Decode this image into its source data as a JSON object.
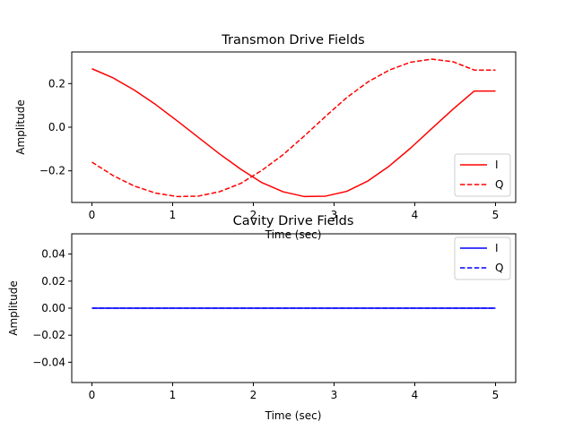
{
  "chart_data": [
    {
      "type": "line",
      "title": "Transmon Drive Fields",
      "xlabel": "Time (sec)",
      "ylabel": "Amplitude",
      "xlim": [
        -0.25,
        5.25
      ],
      "ylim": [
        -0.345,
        0.345
      ],
      "xticks": [
        0,
        1,
        2,
        3,
        4,
        5
      ],
      "xtick_labels": [
        "0",
        "1",
        "2",
        "3",
        "4",
        "5"
      ],
      "yticks": [
        0.2,
        0.0,
        -0.2
      ],
      "ytick_labels": [
        "0.2",
        "0.0",
        "−0.2"
      ],
      "legend_position": "lower-right",
      "series": [
        {
          "name": "I",
          "color": "#ff0000",
          "linestyle": "solid",
          "x": [
            0,
            0.263,
            0.526,
            0.789,
            1.053,
            1.316,
            1.579,
            1.842,
            2.105,
            2.368,
            2.632,
            2.895,
            3.158,
            3.421,
            3.684,
            3.947,
            4.211,
            4.474,
            4.737,
            5.0
          ],
          "y": [
            0.268,
            0.226,
            0.17,
            0.104,
            0.03,
            -0.046,
            -0.122,
            -0.192,
            -0.254,
            -0.296,
            -0.318,
            -0.316,
            -0.294,
            -0.246,
            -0.178,
            -0.096,
            -0.006,
            0.083,
            0.166,
            0.166
          ]
        },
        {
          "name": "Q",
          "color": "#ff0000",
          "linestyle": "dashed",
          "x": [
            0,
            0.263,
            0.526,
            0.789,
            1.053,
            1.316,
            1.579,
            1.842,
            2.105,
            2.368,
            2.632,
            2.895,
            3.158,
            3.421,
            3.684,
            3.947,
            4.211,
            4.474,
            4.737,
            5.0
          ],
          "y": [
            -0.16,
            -0.222,
            -0.27,
            -0.302,
            -0.318,
            -0.316,
            -0.296,
            -0.258,
            -0.198,
            -0.126,
            -0.04,
            0.05,
            0.136,
            0.208,
            0.262,
            0.298,
            0.312,
            0.3,
            0.262,
            0.262
          ]
        }
      ]
    },
    {
      "type": "line",
      "title": "Cavity Drive Fields",
      "xlabel": "Time (sec)",
      "ylabel": "Amplitude",
      "xlim": [
        -0.25,
        5.25
      ],
      "ylim": [
        -0.055,
        0.055
      ],
      "xticks": [
        0,
        1,
        2,
        3,
        4,
        5
      ],
      "xtick_labels": [
        "0",
        "1",
        "2",
        "3",
        "4",
        "5"
      ],
      "yticks": [
        0.04,
        0.02,
        0.0,
        -0.02,
        -0.04
      ],
      "ytick_labels": [
        "0.04",
        "0.02",
        "0.00",
        "−0.02",
        "−0.04"
      ],
      "legend_position": "upper-right",
      "series": [
        {
          "name": "I",
          "color": "#0000ff",
          "linestyle": "solid",
          "x": [
            0,
            5
          ],
          "y": [
            0.0,
            0.0
          ]
        },
        {
          "name": "Q",
          "color": "#0000ff",
          "linestyle": "dashed",
          "x": [
            0,
            5
          ],
          "y": [
            0.0,
            0.0
          ]
        }
      ]
    }
  ]
}
